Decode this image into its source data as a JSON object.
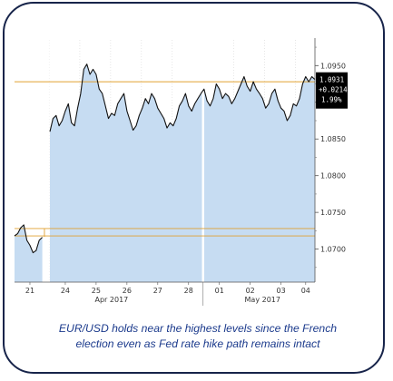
{
  "chart_data": {
    "type": "area",
    "title": "",
    "xlabel": "",
    "ylabel": "",
    "ylim": [
      1.0655,
      1.0985
    ],
    "y_ticks": [
      "1.0950",
      "1.0900",
      "1.0850",
      "1.0800",
      "1.0750",
      "1.0700"
    ],
    "y_tick_values": [
      1.095,
      1.09,
      1.085,
      1.08,
      1.075,
      1.07
    ],
    "x_day_labels": [
      "21",
      "24",
      "25",
      "26",
      "27",
      "28",
      "01",
      "02",
      "03",
      "04"
    ],
    "x_month_labels": [
      "Apr 2017",
      "May 2017"
    ],
    "gap_after_day": "21",
    "session_separators": [
      "21",
      "28"
    ],
    "reference_levels": [
      1.0928,
      1.0728,
      1.0718
    ],
    "last_price_box": {
      "value": "1.0931",
      "change": "+0.0214",
      "percent": "1.99%"
    },
    "series": [
      {
        "x": [
          0,
          0.1,
          0.2,
          0.3,
          0.4,
          0.5,
          0.6,
          0.7,
          0.8,
          0.9,
          1,
          1.1,
          1.2,
          1.3,
          1.4,
          1.5,
          1.6,
          1.7,
          1.8,
          1.9,
          2,
          2.1,
          2.2,
          2.3,
          2.4,
          2.5,
          2.6,
          2.7,
          2.8,
          2.9,
          3,
          3.1,
          3.2,
          3.3,
          3.4,
          3.5,
          3.6,
          3.7,
          3.8,
          3.9,
          4,
          4.1,
          4.2,
          4.3,
          4.4,
          4.5,
          4.6,
          4.7,
          4.8,
          4.9,
          5,
          5.1,
          5.2,
          5.3,
          5.4,
          5.5,
          5.6,
          5.7,
          5.8,
          5.9,
          6,
          6.1,
          6.2,
          6.3,
          6.4,
          6.5,
          6.6,
          6.7,
          6.8,
          6.9,
          7,
          7.1,
          7.2,
          7.3,
          7.4,
          7.5,
          7.6,
          7.7,
          7.8,
          7.9,
          8,
          8.1,
          8.2,
          8.3,
          8.4,
          8.5,
          8.6,
          8.7,
          8.8,
          8.9,
          9,
          9.1,
          9.2,
          9.3,
          9.4,
          9.5,
          9.6
        ],
        "y": [
          1.0718,
          1.0721,
          1.0729,
          1.0733,
          1.0712,
          1.0705,
          1.0695,
          1.0698,
          1.0712,
          1.0716,
          1.086,
          1.0878,
          1.0882,
          1.0868,
          1.0875,
          1.0888,
          1.0898,
          1.0872,
          1.0868,
          1.0892,
          1.0912,
          1.0945,
          1.0952,
          1.0938,
          1.0945,
          1.0938,
          1.0918,
          1.0912,
          1.0895,
          1.0878,
          1.0885,
          1.0882,
          1.0898,
          1.0905,
          1.0912,
          1.0888,
          1.0875,
          1.0862,
          1.0868,
          1.0882,
          1.0892,
          1.0905,
          1.0898,
          1.0912,
          1.0905,
          1.0892,
          1.0885,
          1.0878,
          1.0865,
          1.0872,
          1.0868,
          1.0878,
          1.0895,
          1.0902,
          1.0912,
          1.0895,
          1.0888,
          1.0898,
          1.0905,
          1.0912,
          1.0918,
          1.0902,
          1.0895,
          1.0905,
          1.0925,
          1.0918,
          1.0905,
          1.0912,
          1.0908,
          1.0898,
          1.0905,
          1.0915,
          1.0925,
          1.0935,
          1.0922,
          1.0915,
          1.0928,
          1.0918,
          1.0912,
          1.0905,
          1.0892,
          1.0898,
          1.0912,
          1.0918,
          1.0902,
          1.0892,
          1.0888,
          1.0875,
          1.0882,
          1.0898,
          1.0895,
          1.0905,
          1.0925,
          1.0935,
          1.0928,
          1.0935,
          1.0931
        ]
      }
    ],
    "colors": {
      "fill": "#c6dcf2",
      "line": "#111111",
      "reference": "#e0a030",
      "frame": "#17244a",
      "caption": "#1b3a8c"
    }
  },
  "caption": {
    "line1": "EUR/USD holds near the highest levels since the French",
    "line2": "election even as Fed rate hike path remains intact"
  }
}
